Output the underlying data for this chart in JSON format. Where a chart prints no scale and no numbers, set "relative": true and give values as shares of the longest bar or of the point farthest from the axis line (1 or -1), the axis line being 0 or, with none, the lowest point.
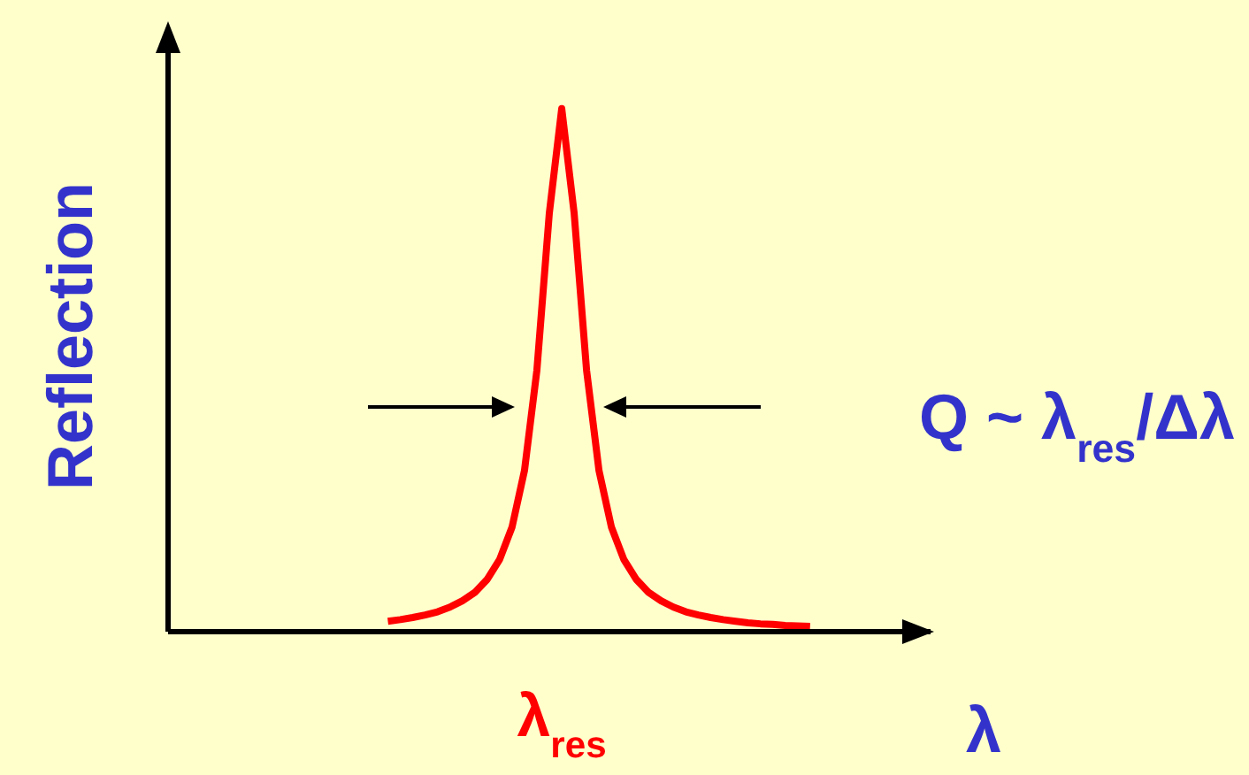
{
  "chart_data": {
    "type": "line",
    "relative": true,
    "xlabel": "λ",
    "ylabel": "Reflection",
    "legend": false,
    "grid": false,
    "marker": "none",
    "line_style": "solid",
    "categories": [
      null,
      null,
      null,
      null,
      null,
      null,
      null,
      null,
      null,
      null,
      null,
      null,
      null,
      null,
      null,
      null,
      null,
      null,
      null,
      null,
      null,
      null,
      null,
      null,
      null,
      null,
      null,
      null,
      null,
      null,
      null,
      null,
      null,
      null,
      null
    ],
    "series": [
      {
        "color": "#ff0000",
        "values": [
          0.02,
          0.023,
          0.027,
          0.032,
          0.038,
          0.047,
          0.059,
          0.075,
          0.1,
          0.138,
          0.2,
          0.308,
          0.5,
          0.8,
          1,
          0.8,
          0.5,
          0.308,
          0.2,
          0.138,
          0.1,
          0.075,
          0.059,
          0.047,
          0.038,
          0.032,
          0.027,
          0.023,
          0.02,
          0.017,
          0.015,
          0.014,
          0.012,
          0.011,
          0.01
        ]
      }
    ],
    "annotations": [
      "λ$_{res}$",
      "Q ~ λ$_{res}$/Δλ"
    ]
  }
}
